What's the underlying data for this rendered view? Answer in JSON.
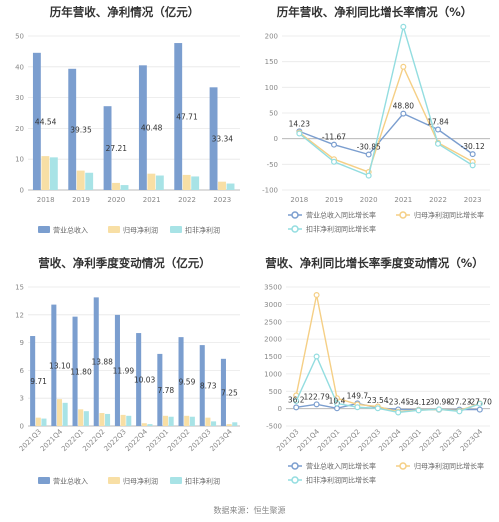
{
  "colors": {
    "revenue": "#7b9ecf",
    "net_profit": "#f8dfa5",
    "deducted_net_profit": "#a8e3e6",
    "grid": "#e8e8e8",
    "axis": "#bbbbbb"
  },
  "source": "数据来源：恒生聚源",
  "chart_data": [
    {
      "type": "bar",
      "title": "历年营收、净利情况（亿元）",
      "categories": [
        "2018",
        "2019",
        "2020",
        "2021",
        "2022",
        "2023"
      ],
      "ylim": [
        0,
        50
      ],
      "yticks": [
        0,
        10,
        20,
        30,
        40,
        50
      ],
      "series": [
        {
          "name": "营业总收入",
          "values": [
            44.54,
            39.35,
            27.21,
            40.48,
            47.71,
            33.34
          ],
          "labels": [
            "44.54",
            "39.35",
            "27.21",
            "40.48",
            "47.71",
            "33.34"
          ]
        },
        {
          "name": "归母净利润",
          "values": [
            11.0,
            6.3,
            2.3,
            5.3,
            4.9,
            2.7
          ]
        },
        {
          "name": "扣非净利润",
          "values": [
            10.6,
            5.6,
            1.6,
            4.7,
            4.4,
            2.1
          ]
        }
      ]
    },
    {
      "type": "line",
      "title": "历年营收、净利同比增长率情况（%）",
      "categories": [
        "2018",
        "2019",
        "2020",
        "2021",
        "2022",
        "2023"
      ],
      "ylim": [
        -100,
        200
      ],
      "yticks": [
        -100,
        -50,
        0,
        50,
        100,
        150,
        200
      ],
      "series": [
        {
          "name": "营业总收入同比增长率",
          "values": [
            14.23,
            -11.67,
            -30.85,
            48.8,
            17.84,
            -30.12
          ],
          "labels": [
            "14.23",
            "-11.67",
            "-30.85",
            "48.80",
            "17.84",
            "-30.12"
          ]
        },
        {
          "name": "归母净利润同比增长率",
          "values": [
            12,
            -40,
            -65,
            140,
            -8,
            -45
          ]
        },
        {
          "name": "扣非净利润同比增长率",
          "values": [
            10,
            -45,
            -72,
            218,
            -10,
            -52
          ]
        }
      ]
    },
    {
      "type": "bar",
      "title": "营收、净利季度变动情况（亿元）",
      "categories": [
        "2021Q3",
        "2021Q4",
        "2022Q1",
        "2022Q2",
        "2022Q3",
        "2022Q4",
        "2023Q1",
        "2023Q2",
        "2023Q3",
        "2023Q4"
      ],
      "ylim": [
        0,
        15
      ],
      "yticks": [
        0,
        3,
        6,
        9,
        12,
        15
      ],
      "series": [
        {
          "name": "营业总收入",
          "values": [
            9.71,
            13.1,
            11.8,
            13.88,
            11.99,
            10.03,
            7.78,
            9.59,
            8.73,
            7.25
          ],
          "labels": [
            "9.71",
            "13.10",
            "11.80",
            "13.88",
            "11.99",
            "10.03",
            "7.78",
            "9.59",
            "8.73",
            "7.25"
          ]
        },
        {
          "name": "归母净利润",
          "values": [
            0.9,
            2.9,
            1.8,
            1.4,
            1.2,
            0.3,
            1.1,
            1.1,
            0.9,
            0.2
          ]
        },
        {
          "name": "扣非净利润",
          "values": [
            0.8,
            2.5,
            1.6,
            1.3,
            1.1,
            0.2,
            1.0,
            1.0,
            0.5,
            0.4
          ]
        }
      ]
    },
    {
      "type": "line",
      "title": "营收、净利同比增长率季度变动情况（%）",
      "categories": [
        "2021Q3",
        "2021Q4",
        "2022Q1",
        "2022Q2",
        "2022Q3",
        "2022Q4",
        "2023Q1",
        "2023Q2",
        "2023Q3",
        "2023Q4"
      ],
      "ylim": [
        -500,
        3500
      ],
      "yticks": [
        -500,
        0,
        500,
        1000,
        1500,
        2000,
        2500,
        3000,
        3500
      ],
      "series": [
        {
          "name": "营业总收入同比增长率",
          "values": [
            36.2,
            122.79,
            10.4,
            149.7,
            23.54,
            -23.45,
            -34.12,
            -30.98,
            -27.23,
            -27.7
          ],
          "labels": [
            "36.2",
            "122.79",
            "10.4",
            "149.7",
            "23.54",
            "-23.45",
            "-34.12",
            "-30.98",
            "-27.23",
            "-27.70"
          ]
        },
        {
          "name": "归母净利润同比增长率",
          "values": [
            380,
            3270,
            300,
            120,
            60,
            -90,
            -40,
            -25,
            -60,
            150
          ]
        },
        {
          "name": "扣非净利润同比增长率",
          "values": [
            220,
            1500,
            150,
            40,
            10,
            -110,
            -50,
            -20,
            -80,
            140
          ]
        }
      ]
    }
  ]
}
